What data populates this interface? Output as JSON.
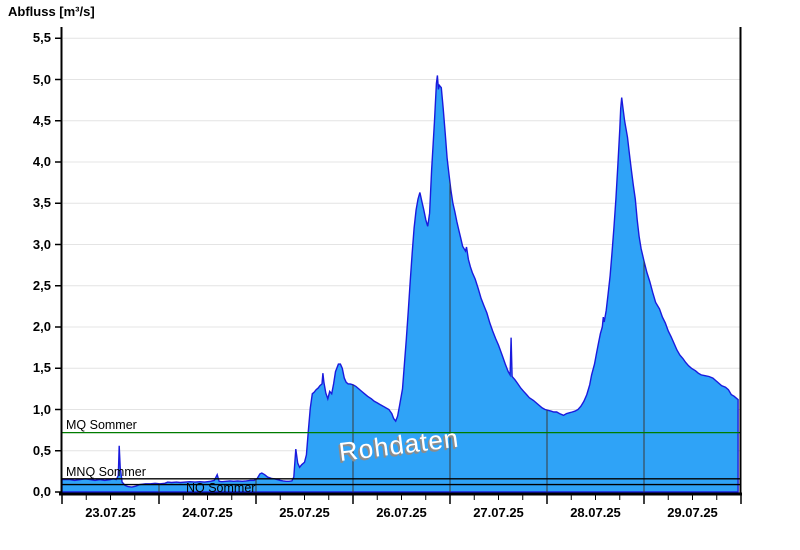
{
  "title": "Abfluss [m³/s]",
  "watermark": {
    "text": "Rohdaten"
  },
  "colors": {
    "background": "#ffffff",
    "area_fill": "#2fa3f7",
    "area_line": "#1a1add",
    "horizontal_grid": "#e4e4e4",
    "day_grid": "#3a3a3a",
    "axis": "#000000",
    "mq_line": "#007c00",
    "mnq_line": "#000000",
    "nq_line": "#000000"
  },
  "chart_data": {
    "type": "area",
    "title": "Abfluss [m³/s]",
    "ylabel": "Abfluss [m³/s]",
    "xlabel": "",
    "ylim": [
      0,
      5.5
    ],
    "ytick_step": 0.5,
    "y_tick_labels": [
      "0,0",
      "0,5",
      "1,0",
      "1,5",
      "2,0",
      "2,5",
      "3,0",
      "3,5",
      "4,0",
      "4,5",
      "5,0",
      "5,5"
    ],
    "x_tick_labels": [
      "23.07.25",
      "24.07.25",
      "25.07.25",
      "26.07.25",
      "27.07.25",
      "28.07.25",
      "29.07.25"
    ],
    "x_unit": "days since 23.07.25 00:00",
    "xlim_days": [
      0,
      7
    ],
    "x_minor_tick_days": 0.25,
    "grid": true,
    "legend_position": "none",
    "reference_lines": [
      {
        "label": "MQ Sommer",
        "value": 0.72,
        "color": "#007c00"
      },
      {
        "label": "MNQ Sommer",
        "value": 0.16,
        "color": "#000000"
      },
      {
        "label": "NQ Sommer",
        "value": 0.09,
        "color": "#000000"
      }
    ],
    "series": [
      {
        "name": "Rohdaten",
        "points": [
          [
            0,
            0.15
          ],
          [
            0.08,
            0.15
          ],
          [
            0.13,
            0.14
          ],
          [
            0.19,
            0.15
          ],
          [
            0.24,
            0.16
          ],
          [
            0.29,
            0.15
          ],
          [
            0.34,
            0.14
          ],
          [
            0.39,
            0.15
          ],
          [
            0.44,
            0.14
          ],
          [
            0.5,
            0.15
          ],
          [
            0.53,
            0.16
          ],
          [
            0.56,
            0.15
          ],
          [
            0.58,
            0.2
          ],
          [
            0.59,
            0.56
          ],
          [
            0.6,
            0.3
          ],
          [
            0.62,
            0.12
          ],
          [
            0.65,
            0.08
          ],
          [
            0.68,
            0.065
          ],
          [
            0.72,
            0.06
          ],
          [
            0.76,
            0.07
          ],
          [
            0.8,
            0.09
          ],
          [
            0.86,
            0.1
          ],
          [
            0.91,
            0.1
          ],
          [
            0.96,
            0.105
          ],
          [
            1.01,
            0.1
          ],
          [
            1.06,
            0.105
          ],
          [
            1.09,
            0.12
          ],
          [
            1.13,
            0.115
          ],
          [
            1.18,
            0.12
          ],
          [
            1.22,
            0.115
          ],
          [
            1.27,
            0.12
          ],
          [
            1.32,
            0.125
          ],
          [
            1.37,
            0.12
          ],
          [
            1.42,
            0.125
          ],
          [
            1.47,
            0.12
          ],
          [
            1.53,
            0.13
          ],
          [
            1.57,
            0.14
          ],
          [
            1.6,
            0.21
          ],
          [
            1.62,
            0.13
          ],
          [
            1.65,
            0.125
          ],
          [
            1.69,
            0.13
          ],
          [
            1.73,
            0.135
          ],
          [
            1.77,
            0.13
          ],
          [
            1.81,
            0.135
          ],
          [
            1.86,
            0.13
          ],
          [
            1.9,
            0.135
          ],
          [
            1.94,
            0.14
          ],
          [
            1.98,
            0.14
          ],
          [
            2.01,
            0.16
          ],
          [
            2.04,
            0.22
          ],
          [
            2.06,
            0.23
          ],
          [
            2.09,
            0.21
          ],
          [
            2.12,
            0.18
          ],
          [
            2.16,
            0.165
          ],
          [
            2.19,
            0.16
          ],
          [
            2.22,
            0.15
          ],
          [
            2.25,
            0.14
          ],
          [
            2.28,
            0.135
          ],
          [
            2.31,
            0.13
          ],
          [
            2.34,
            0.13
          ],
          [
            2.37,
            0.135
          ],
          [
            2.39,
            0.18
          ],
          [
            2.41,
            0.52
          ],
          [
            2.43,
            0.35
          ],
          [
            2.45,
            0.3
          ],
          [
            2.47,
            0.33
          ],
          [
            2.5,
            0.36
          ],
          [
            2.52,
            0.45
          ],
          [
            2.54,
            0.75
          ],
          [
            2.56,
            1.02
          ],
          [
            2.58,
            1.19
          ],
          [
            2.6,
            1.21
          ],
          [
            2.62,
            1.24
          ],
          [
            2.64,
            1.26
          ],
          [
            2.66,
            1.29
          ],
          [
            2.68,
            1.31
          ],
          [
            2.69,
            1.44
          ],
          [
            2.7,
            1.33
          ],
          [
            2.72,
            1.2
          ],
          [
            2.74,
            1.13
          ],
          [
            2.76,
            1.22
          ],
          [
            2.78,
            1.19
          ],
          [
            2.8,
            1.31
          ],
          [
            2.82,
            1.46
          ],
          [
            2.85,
            1.55
          ],
          [
            2.87,
            1.55
          ],
          [
            2.89,
            1.5
          ],
          [
            2.91,
            1.38
          ],
          [
            2.93,
            1.33
          ],
          [
            2.95,
            1.31
          ],
          [
            2.97,
            1.31
          ],
          [
            3,
            1.3
          ],
          [
            3.03,
            1.28
          ],
          [
            3.06,
            1.25
          ],
          [
            3.09,
            1.22
          ],
          [
            3.12,
            1.19
          ],
          [
            3.15,
            1.16
          ],
          [
            3.19,
            1.13
          ],
          [
            3.22,
            1.1
          ],
          [
            3.25,
            1.08
          ],
          [
            3.28,
            1.06
          ],
          [
            3.31,
            1.04
          ],
          [
            3.34,
            1.02
          ],
          [
            3.37,
            1
          ],
          [
            3.4,
            0.95
          ],
          [
            3.42,
            0.89
          ],
          [
            3.44,
            0.86
          ],
          [
            3.46,
            0.92
          ],
          [
            3.48,
            1.05
          ],
          [
            3.51,
            1.25
          ],
          [
            3.53,
            1.55
          ],
          [
            3.55,
            1.85
          ],
          [
            3.57,
            2.2
          ],
          [
            3.59,
            2.55
          ],
          [
            3.61,
            2.9
          ],
          [
            3.63,
            3.2
          ],
          [
            3.65,
            3.42
          ],
          [
            3.67,
            3.55
          ],
          [
            3.69,
            3.63
          ],
          [
            3.71,
            3.52
          ],
          [
            3.73,
            3.42
          ],
          [
            3.75,
            3.3
          ],
          [
            3.77,
            3.22
          ],
          [
            3.79,
            3.38
          ],
          [
            3.81,
            3.9
          ],
          [
            3.84,
            4.5
          ],
          [
            3.86,
            4.95
          ],
          [
            3.87,
            5.05
          ],
          [
            3.88,
            4.88
          ],
          [
            3.89,
            4.93
          ],
          [
            3.91,
            4.9
          ],
          [
            3.93,
            4.65
          ],
          [
            3.95,
            4.35
          ],
          [
            3.97,
            4.05
          ],
          [
            3.99,
            3.85
          ],
          [
            4.01,
            3.65
          ],
          [
            4.03,
            3.5
          ],
          [
            4.05,
            3.4
          ],
          [
            4.07,
            3.28
          ],
          [
            4.09,
            3.18
          ],
          [
            4.11,
            3.08
          ],
          [
            4.13,
            2.98
          ],
          [
            4.16,
            2.92
          ],
          [
            4.17,
            2.97
          ],
          [
            4.19,
            2.82
          ],
          [
            4.21,
            2.73
          ],
          [
            4.23,
            2.66
          ],
          [
            4.26,
            2.58
          ],
          [
            4.29,
            2.47
          ],
          [
            4.32,
            2.35
          ],
          [
            4.35,
            2.26
          ],
          [
            4.38,
            2.17
          ],
          [
            4.41,
            2.05
          ],
          [
            4.44,
            1.95
          ],
          [
            4.47,
            1.86
          ],
          [
            4.5,
            1.78
          ],
          [
            4.54,
            1.65
          ],
          [
            4.57,
            1.55
          ],
          [
            4.6,
            1.46
          ],
          [
            4.62,
            1.42
          ],
          [
            4.63,
            1.87
          ],
          [
            4.64,
            1.4
          ],
          [
            4.67,
            1.36
          ],
          [
            4.7,
            1.31
          ],
          [
            4.73,
            1.26
          ],
          [
            4.76,
            1.22
          ],
          [
            4.79,
            1.18
          ],
          [
            4.82,
            1.14
          ],
          [
            4.86,
            1.11
          ],
          [
            4.89,
            1.08
          ],
          [
            4.92,
            1.05
          ],
          [
            4.95,
            1.02
          ],
          [
            4.98,
            1
          ],
          [
            5.01,
            0.99
          ],
          [
            5.04,
            0.98
          ],
          [
            5.07,
            0.97
          ],
          [
            5.1,
            0.97
          ],
          [
            5.13,
            0.95
          ],
          [
            5.17,
            0.93
          ],
          [
            5.2,
            0.95
          ],
          [
            5.23,
            0.96
          ],
          [
            5.26,
            0.97
          ],
          [
            5.29,
            0.98
          ],
          [
            5.32,
            1
          ],
          [
            5.35,
            1.04
          ],
          [
            5.38,
            1.1
          ],
          [
            5.41,
            1.18
          ],
          [
            5.44,
            1.3
          ],
          [
            5.46,
            1.42
          ],
          [
            5.49,
            1.55
          ],
          [
            5.51,
            1.68
          ],
          [
            5.53,
            1.8
          ],
          [
            5.55,
            1.92
          ],
          [
            5.57,
            2
          ],
          [
            5.58,
            2.12
          ],
          [
            5.59,
            2.06
          ],
          [
            5.61,
            2.2
          ],
          [
            5.63,
            2.4
          ],
          [
            5.65,
            2.62
          ],
          [
            5.67,
            2.9
          ],
          [
            5.69,
            3.2
          ],
          [
            5.71,
            3.55
          ],
          [
            5.73,
            3.95
          ],
          [
            5.75,
            4.4
          ],
          [
            5.76,
            4.65
          ],
          [
            5.77,
            4.78
          ],
          [
            5.78,
            4.68
          ],
          [
            5.8,
            4.5
          ],
          [
            5.83,
            4.3
          ],
          [
            5.85,
            4.1
          ],
          [
            5.87,
            3.9
          ],
          [
            5.89,
            3.72
          ],
          [
            5.91,
            3.55
          ],
          [
            5.93,
            3.3
          ],
          [
            5.95,
            3.1
          ],
          [
            5.97,
            2.95
          ],
          [
            6,
            2.8
          ],
          [
            6.03,
            2.66
          ],
          [
            6.06,
            2.55
          ],
          [
            6.09,
            2.42
          ],
          [
            6.12,
            2.3
          ],
          [
            6.16,
            2.22
          ],
          [
            6.19,
            2.12
          ],
          [
            6.22,
            2.05
          ],
          [
            6.25,
            1.95
          ],
          [
            6.28,
            1.88
          ],
          [
            6.31,
            1.8
          ],
          [
            6.34,
            1.72
          ],
          [
            6.37,
            1.66
          ],
          [
            6.4,
            1.62
          ],
          [
            6.43,
            1.57
          ],
          [
            6.46,
            1.53
          ],
          [
            6.49,
            1.5
          ],
          [
            6.53,
            1.47
          ],
          [
            6.56,
            1.44
          ],
          [
            6.59,
            1.42
          ],
          [
            6.63,
            1.41
          ],
          [
            6.67,
            1.4
          ],
          [
            6.71,
            1.38
          ],
          [
            6.74,
            1.35
          ],
          [
            6.77,
            1.32
          ],
          [
            6.8,
            1.29
          ],
          [
            6.84,
            1.27
          ],
          [
            6.87,
            1.24
          ],
          [
            6.9,
            1.18
          ],
          [
            6.93,
            1.16
          ],
          [
            6.96,
            1.13
          ],
          [
            6.97,
            1.12
          ]
        ]
      }
    ]
  }
}
